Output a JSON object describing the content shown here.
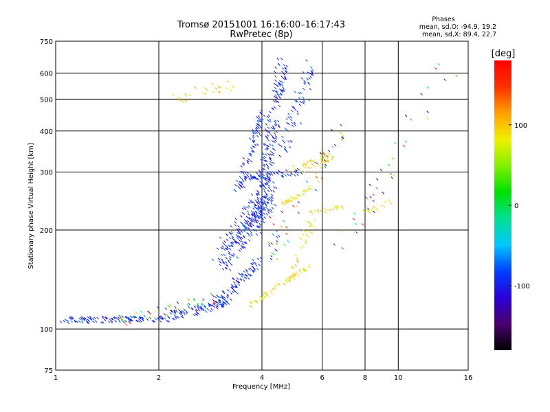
{
  "chart_data": {
    "type": "scatter",
    "title": "Tromsø 20151001 16:16:00–16:17:43",
    "subtitle": "RwPretec (8p)",
    "xlabel": "Frequency [MHz]",
    "ylabel": "Stationary phase Virtual Height [km]",
    "x_scale": "log",
    "y_scale": "log",
    "xlim": [
      1,
      16
    ],
    "ylim": [
      75,
      750
    ],
    "x_ticks": [
      1,
      2,
      4,
      6,
      8,
      10,
      16
    ],
    "y_ticks": [
      75,
      100,
      200,
      300,
      400,
      500,
      600,
      750
    ],
    "grid": true,
    "stats": {
      "heading": "Phases",
      "o_line": "mean, sd,O: -94.9, 19.2",
      "x_line": "mean, sd,X:  89.4, 22.7"
    },
    "colorbar": {
      "label": "[deg]",
      "min": -180,
      "max": 180,
      "ticks": [
        100,
        0,
        -100
      ],
      "colors": [
        "#000000",
        "#4b006e",
        "#2a00d8",
        "#0040ff",
        "#00c8ff",
        "#00e090",
        "#00e000",
        "#80f000",
        "#f0f000",
        "#ffa000",
        "#ff3000",
        "#ff0000"
      ]
    },
    "series": [
      {
        "mode": "O",
        "phase_deg": -95,
        "traces": [
          {
            "x": [
              1.03,
              2.05
            ],
            "y": [
              106,
              108
            ],
            "n": 110,
            "spread": 0.03
          },
          {
            "x": [
              2.05,
              3.2
            ],
            "y": [
              108,
              120
            ],
            "n": 90,
            "spread": 0.04
          },
          {
            "x": [
              3.0,
              3.9
            ],
            "y": [
              120,
              160
            ],
            "n": 90,
            "spread": 0.06
          },
          {
            "x": [
              3.0,
              4.25
            ],
            "y": [
              160,
              260
            ],
            "n": 240,
            "spread": 0.12
          },
          {
            "x": [
              3.4,
              4.0
            ],
            "y": [
              260,
              450
            ],
            "n": 90,
            "spread": 0.05
          },
          {
            "x": [
              3.85,
              4.6
            ],
            "y": [
              200,
              650
            ],
            "n": 230,
            "spread": 0.08
          },
          {
            "x": [
              4.6,
              5.6
            ],
            "y": [
              350,
              620
            ],
            "n": 70,
            "spread": 0.08
          },
          {
            "x": [
              3.6,
              5.2
            ],
            "y": [
              290,
              300
            ],
            "n": 60,
            "spread": 0.03
          }
        ]
      },
      {
        "mode": "X",
        "phase_deg": 90,
        "traces": [
          {
            "x": [
              3.7,
              5.7
            ],
            "y": [
              118,
              160
            ],
            "n": 60,
            "spread": 0.02
          },
          {
            "x": [
              4.8,
              5.6
            ],
            "y": [
              145,
              210
            ],
            "n": 30,
            "spread": 0.05
          },
          {
            "x": [
              4.6,
              5.6
            ],
            "y": [
              240,
              270
            ],
            "n": 30,
            "spread": 0.02
          },
          {
            "x": [
              4.9,
              6.5
            ],
            "y": [
              300,
              340
            ],
            "n": 40,
            "spread": 0.04
          },
          {
            "x": [
              5.5,
              7.0
            ],
            "y": [
              225,
              235
            ],
            "n": 20,
            "spread": 0.02
          },
          {
            "x": [
              8.0,
              9.5
            ],
            "y": [
              225,
              245
            ],
            "n": 15,
            "spread": 0.02
          },
          {
            "x": [
              2.2,
              3.4
            ],
            "y": [
              500,
              560
            ],
            "n": 25,
            "spread": 0.05
          }
        ]
      },
      {
        "mode": "mixed",
        "phase_deg": 0,
        "traces": [
          {
            "x": [
              1.5,
              3.0
            ],
            "y": [
              105,
              125
            ],
            "n": 50,
            "spread": 0.05
          },
          {
            "x": [
              4.2,
              7.0
            ],
            "y": [
              170,
              420
            ],
            "n": 60,
            "spread": 0.1
          },
          {
            "x": [
              6.5,
              14.0
            ],
            "y": [
              160,
              640
            ],
            "n": 40,
            "spread": 0.12
          }
        ]
      }
    ]
  }
}
